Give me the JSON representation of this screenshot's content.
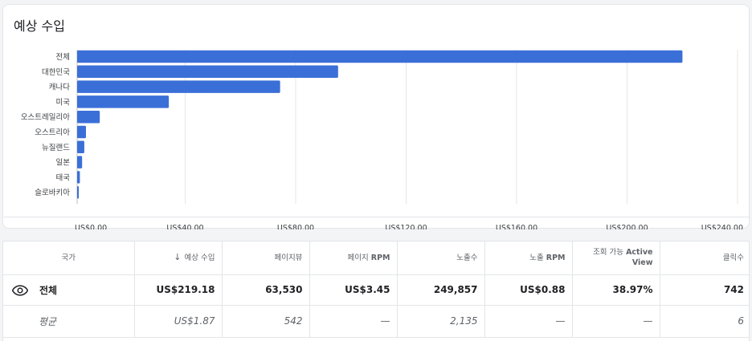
{
  "card": {
    "title": "예상 수입"
  },
  "chart_data": {
    "type": "bar",
    "orientation": "horizontal",
    "title": "예상 수입",
    "categories": [
      "전체",
      "대한민국",
      "캐나다",
      "미국",
      "오스트레일리아",
      "오스트리아",
      "뉴질랜드",
      "일본",
      "태국",
      "슬로바키아"
    ],
    "values": [
      219.18,
      94.5,
      73.5,
      33.2,
      8.2,
      3.2,
      2.6,
      1.8,
      1.0,
      0.6
    ],
    "xlim": [
      0,
      240
    ],
    "xticks": [
      0,
      40,
      80,
      120,
      160,
      200,
      240
    ],
    "tick_labels": [
      "US$0.00",
      "US$40.00",
      "US$80.00",
      "US$120.00",
      "US$160.00",
      "US$200.00",
      "US$240.00"
    ],
    "xlabel": "",
    "ylabel": "",
    "grid": true,
    "color": "#3b6fd8"
  },
  "table": {
    "headers": {
      "country": "국가",
      "estimated_earnings": "예상 수입",
      "pageviews": "페이지뷰",
      "page_rpm_prefix": "페이지",
      "page_rpm_bold": "RPM",
      "impressions": "노출수",
      "impression_rpm_prefix": "노출",
      "impression_rpm_bold": "RPM",
      "viewable_prefix": "조회 가능",
      "viewable_bold": "Active View",
      "clicks": "클릭수"
    },
    "total_row": {
      "name": "전체",
      "estimated_earnings": "US$219.18",
      "pageviews": "63,530",
      "page_rpm": "US$3.45",
      "impressions": "249,857",
      "impression_rpm": "US$0.88",
      "viewable": "38.97%",
      "clicks": "742"
    },
    "average_row": {
      "name": "평균",
      "estimated_earnings": "US$1.87",
      "pageviews": "542",
      "page_rpm": "—",
      "impressions": "2,135",
      "impression_rpm": "—",
      "viewable": "—",
      "clicks": "6"
    }
  }
}
